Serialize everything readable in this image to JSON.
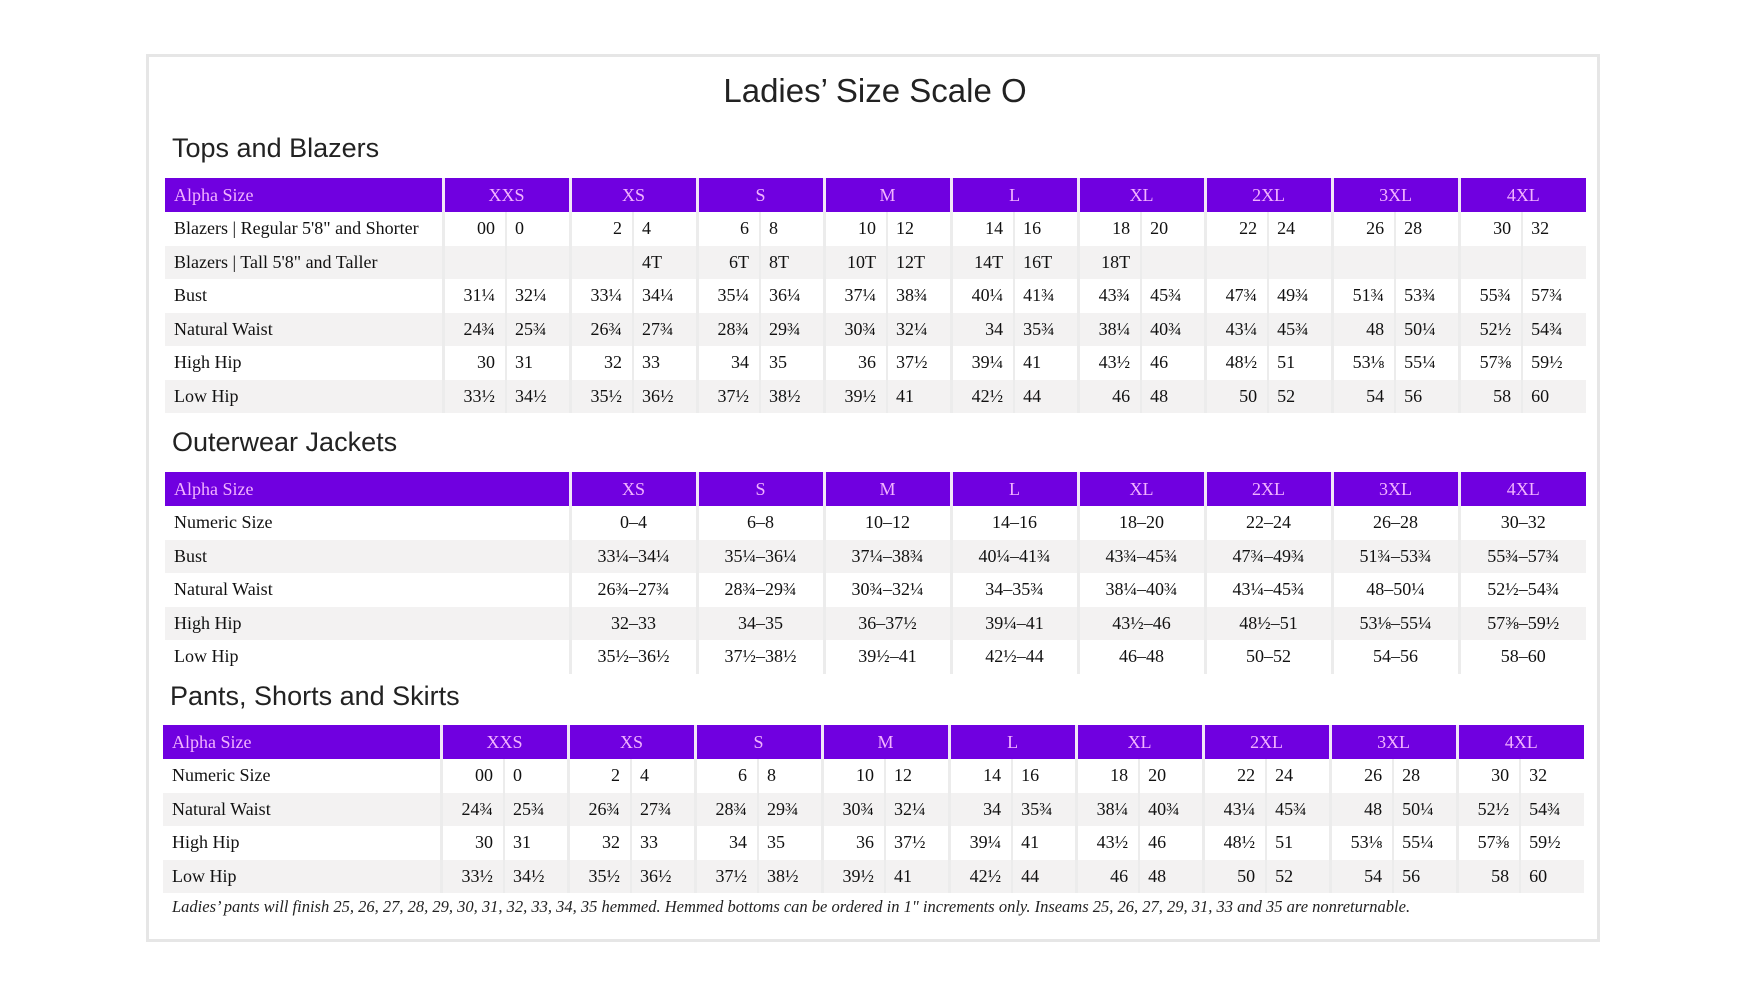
{
  "title": "Ladies’ Size Scale O",
  "colors": {
    "header_bg": "#7000e0",
    "header_text": "#f2b3ff"
  },
  "tops": {
    "heading": "Tops and Blazers",
    "header": [
      "Alpha Size",
      "XXS",
      "XS",
      "S",
      "M",
      "L",
      "XL",
      "2XL",
      "3XL",
      "4XL"
    ],
    "rows": [
      {
        "label": "Blazers | Regular 5'8\" and Shorter",
        "values": [
          [
            "00",
            "0"
          ],
          [
            "2",
            "4"
          ],
          [
            "6",
            "8"
          ],
          [
            "10",
            "12"
          ],
          [
            "14",
            "16"
          ],
          [
            "18",
            "20"
          ],
          [
            "22",
            "24"
          ],
          [
            "26",
            "28"
          ],
          [
            "30",
            "32"
          ]
        ]
      },
      {
        "label": "Blazers | Tall 5'8\" and Taller",
        "values": [
          [
            "",
            ""
          ],
          [
            "",
            "4T"
          ],
          [
            "6T",
            "8T"
          ],
          [
            "10T",
            "12T"
          ],
          [
            "14T",
            "16T"
          ],
          [
            "18T",
            ""
          ],
          [
            "",
            ""
          ],
          [
            "",
            ""
          ],
          [
            "",
            ""
          ]
        ]
      },
      {
        "label": "Bust",
        "values": [
          [
            "31¼",
            "32¼"
          ],
          [
            "33¼",
            "34¼"
          ],
          [
            "35¼",
            "36¼"
          ],
          [
            "37¼",
            "38¾"
          ],
          [
            "40¼",
            "41¾"
          ],
          [
            "43¾",
            "45¾"
          ],
          [
            "47¾",
            "49¾"
          ],
          [
            "51¾",
            "53¾"
          ],
          [
            "55¾",
            "57¾"
          ]
        ]
      },
      {
        "label": "Natural Waist",
        "values": [
          [
            "24¾",
            "25¾"
          ],
          [
            "26¾",
            "27¾"
          ],
          [
            "28¾",
            "29¾"
          ],
          [
            "30¾",
            "32¼"
          ],
          [
            "34",
            "35¾"
          ],
          [
            "38¼",
            "40¾"
          ],
          [
            "43¼",
            "45¾"
          ],
          [
            "48",
            "50¼"
          ],
          [
            "52½",
            "54¾"
          ]
        ]
      },
      {
        "label": "High Hip",
        "values": [
          [
            "30",
            "31"
          ],
          [
            "32",
            "33"
          ],
          [
            "34",
            "35"
          ],
          [
            "36",
            "37½"
          ],
          [
            "39¼",
            "41"
          ],
          [
            "43½",
            "46"
          ],
          [
            "48½",
            "51"
          ],
          [
            "53⅛",
            "55¼"
          ],
          [
            "57⅜",
            "59½"
          ]
        ]
      },
      {
        "label": "Low Hip",
        "values": [
          [
            "33½",
            "34½"
          ],
          [
            "35½",
            "36½"
          ],
          [
            "37½",
            "38½"
          ],
          [
            "39½",
            "41"
          ],
          [
            "42½",
            "44"
          ],
          [
            "46",
            "48"
          ],
          [
            "50",
            "52"
          ],
          [
            "54",
            "56"
          ],
          [
            "58",
            "60"
          ]
        ]
      }
    ]
  },
  "outerwear": {
    "heading": "Outerwear Jackets",
    "header": [
      "Alpha Size",
      "XS",
      "S",
      "M",
      "L",
      "XL",
      "2XL",
      "3XL",
      "4XL"
    ],
    "rows": [
      {
        "label": "Numeric Size",
        "values": [
          "0–4",
          "6–8",
          "10–12",
          "14–16",
          "18–20",
          "22–24",
          "26–28",
          "30–32"
        ]
      },
      {
        "label": "Bust",
        "values": [
          "33¼–34¼",
          "35¼–36¼",
          "37¼–38¾",
          "40¼–41¾",
          "43¾–45¾",
          "47¾–49¾",
          "51¾–53¾",
          "55¾–57¾"
        ]
      },
      {
        "label": "Natural Waist",
        "values": [
          "26¾–27¾",
          "28¾–29¾",
          "30¾–32¼",
          "34–35¾",
          "38¼–40¾",
          "43¼–45¾",
          "48–50¼",
          "52½–54¾"
        ]
      },
      {
        "label": "High Hip",
        "values": [
          "32–33",
          "34–35",
          "36–37½",
          "39¼–41",
          "43½–46",
          "48½–51",
          "53⅛–55¼",
          "57⅜–59½"
        ]
      },
      {
        "label": "Low Hip",
        "values": [
          "35½–36½",
          "37½–38½",
          "39½–41",
          "42½–44",
          "46–48",
          "50–52",
          "54–56",
          "58–60"
        ]
      }
    ]
  },
  "pants": {
    "heading": "Pants, Shorts and Skirts",
    "header": [
      "Alpha Size",
      "XXS",
      "XS",
      "S",
      "M",
      "L",
      "XL",
      "2XL",
      "3XL",
      "4XL"
    ],
    "rows": [
      {
        "label": "Numeric Size",
        "values": [
          [
            "00",
            "0"
          ],
          [
            "2",
            "4"
          ],
          [
            "6",
            "8"
          ],
          [
            "10",
            "12"
          ],
          [
            "14",
            "16"
          ],
          [
            "18",
            "20"
          ],
          [
            "22",
            "24"
          ],
          [
            "26",
            "28"
          ],
          [
            "30",
            "32"
          ]
        ]
      },
      {
        "label": "Natural Waist",
        "values": [
          [
            "24¾",
            "25¾"
          ],
          [
            "26¾",
            "27¾"
          ],
          [
            "28¾",
            "29¾"
          ],
          [
            "30¾",
            "32¼"
          ],
          [
            "34",
            "35¾"
          ],
          [
            "38¼",
            "40¾"
          ],
          [
            "43¼",
            "45¾"
          ],
          [
            "48",
            "50¼"
          ],
          [
            "52½",
            "54¾"
          ]
        ]
      },
      {
        "label": "High Hip",
        "values": [
          [
            "30",
            "31"
          ],
          [
            "32",
            "33"
          ],
          [
            "34",
            "35"
          ],
          [
            "36",
            "37½"
          ],
          [
            "39¼",
            "41"
          ],
          [
            "43½",
            "46"
          ],
          [
            "48½",
            "51"
          ],
          [
            "53⅛",
            "55¼"
          ],
          [
            "57⅜",
            "59½"
          ]
        ]
      },
      {
        "label": "Low Hip",
        "values": [
          [
            "33½",
            "34½"
          ],
          [
            "35½",
            "36½"
          ],
          [
            "37½",
            "38½"
          ],
          [
            "39½",
            "41"
          ],
          [
            "42½",
            "44"
          ],
          [
            "46",
            "48"
          ],
          [
            "50",
            "52"
          ],
          [
            "54",
            "56"
          ],
          [
            "58",
            "60"
          ]
        ]
      }
    ],
    "note": "Ladies’ pants will finish 25, 26, 27, 28, 29, 30, 31, 32, 33, 34, 35 hemmed. Hemmed bottoms can be ordered in 1\" increments only. Inseams 25, 26, 27, 29, 31, 33 and 35 are nonreturnable."
  }
}
